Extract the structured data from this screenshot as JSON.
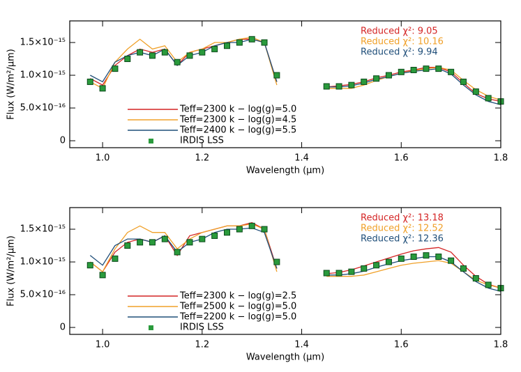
{
  "chart_data": [
    {
      "type": "line",
      "xlabel": "Wavelength (µm)",
      "ylabel": "Flux (W/m²/µm)",
      "xlim": [
        0.934,
        1.8
      ],
      "ylim": [
        -1.06e-16,
        1.83e-15
      ],
      "xticks": [
        {
          "value": 1,
          "label": "1.0"
        },
        1.2,
        1.4,
        1.6,
        1.8
      ],
      "yticks": [
        0,
        {
          "value": 5e-16,
          "label": "5.0×10⁻¹⁶"
        },
        {
          "value": 1e-15,
          "label": "1.0×10⁻¹⁵"
        },
        {
          "value": 1.5e-15,
          "label": "1.5×10⁻¹⁵"
        }
      ],
      "x": [
        0.975,
        1.0,
        1.025,
        1.05,
        1.075,
        1.1,
        1.125,
        1.15,
        1.175,
        1.2,
        1.225,
        1.25,
        1.275,
        1.3,
        1.325,
        1.35,
        1.4,
        1.45,
        1.475,
        1.5,
        1.525,
        1.55,
        1.575,
        1.6,
        1.625,
        1.65,
        1.675,
        1.7,
        1.725,
        1.75,
        1.775,
        1.8
      ],
      "series": [
        {
          "name": "Teff=2300 k − log(g)=5.0",
          "color": "#d42424",
          "values": [
            9.5e-16,
            8.5e-16,
            1.15e-15,
            1.3e-15,
            1.4e-15,
            1.35e-15,
            1.4e-15,
            1.15e-15,
            1.35e-15,
            1.4e-15,
            1.45e-15,
            1.5e-15,
            1.55e-15,
            1.55e-15,
            1.5e-15,
            9e-16,
            null,
            8.2e-16,
            8.4e-16,
            8.6e-16,
            9e-16,
            9.6e-16,
            1e-15,
            1.05e-15,
            1.08e-15,
            1.12e-15,
            1.12e-15,
            1.05e-15,
            8.8e-16,
            7.2e-16,
            6.4e-16,
            6e-16
          ]
        },
        {
          "name": "Teff=2300 k − log(g)=4.5",
          "color": "#f0a028",
          "values": [
            9e-16,
            8e-16,
            1.2e-15,
            1.4e-15,
            1.55e-15,
            1.4e-15,
            1.45e-15,
            1.2e-15,
            1.35e-15,
            1.4e-15,
            1.5e-15,
            1.5e-15,
            1.55e-15,
            1.58e-15,
            1.5e-15,
            8.5e-16,
            null,
            8e-16,
            8e-16,
            8e-16,
            8.5e-16,
            9.2e-16,
            9.8e-16,
            1.03e-15,
            1.07e-15,
            1.1e-15,
            1.12e-15,
            1.08e-15,
            9.2e-16,
            7.8e-16,
            6.8e-16,
            6.2e-16
          ]
        },
        {
          "name": "Teff=2400 k − log(g)=5.5",
          "color": "#1f4e79",
          "values": [
            1e-15,
            9e-16,
            1.2e-15,
            1.3e-15,
            1.35e-15,
            1.3e-15,
            1.4e-15,
            1.15e-15,
            1.3e-15,
            1.35e-15,
            1.45e-15,
            1.5e-15,
            1.5e-15,
            1.55e-15,
            1.5e-15,
            9e-16,
            null,
            8.2e-16,
            8.2e-16,
            8.4e-16,
            8.8e-16,
            9.4e-16,
            9.8e-16,
            1.03e-15,
            1.06e-15,
            1.08e-15,
            1.1e-15,
            1.02e-15,
            8.5e-16,
            7e-16,
            6e-16,
            5.5e-16
          ]
        },
        {
          "name": "IRDIS LSS",
          "color": "#2a9a3c",
          "marker": "square",
          "values": [
            9e-16,
            8e-16,
            1.1e-15,
            1.25e-15,
            1.35e-15,
            1.3e-15,
            1.35e-15,
            1.2e-15,
            1.3e-15,
            1.35e-15,
            1.4e-15,
            1.45e-15,
            1.5e-15,
            1.55e-15,
            1.5e-15,
            1e-15,
            null,
            8.3e-16,
            8.3e-16,
            8.5e-16,
            9e-16,
            9.5e-16,
            1e-15,
            1.05e-15,
            1.08e-15,
            1.1e-15,
            1.1e-15,
            1.05e-15,
            9e-16,
            7.5e-16,
            6.5e-16,
            6e-16
          ]
        }
      ],
      "annotations": [
        {
          "text": "Reduced χ²: 9.05",
          "color": "#d42424"
        },
        {
          "text": "Reduced χ²: 10.16",
          "color": "#f0a028"
        },
        {
          "text": "Reduced χ²: 9.94",
          "color": "#1f4e79"
        }
      ]
    },
    {
      "type": "line",
      "xlabel": "Wavelength (µm)",
      "ylabel": "Flux (W/m²/µm)",
      "xlim": [
        0.934,
        1.8
      ],
      "ylim": [
        -1.06e-16,
        1.83e-15
      ],
      "xticks": [
        {
          "value": 1,
          "label": "1.0"
        },
        1.2,
        1.4,
        1.6,
        1.8
      ],
      "yticks": [
        0,
        {
          "value": 5e-16,
          "label": "5.0×10⁻¹⁶"
        },
        {
          "value": 1e-15,
          "label": "1.0×10⁻¹⁵"
        },
        {
          "value": 1.5e-15,
          "label": "1.5×10⁻¹⁵"
        }
      ],
      "x": [
        0.975,
        1.0,
        1.025,
        1.05,
        1.075,
        1.1,
        1.125,
        1.15,
        1.175,
        1.2,
        1.225,
        1.25,
        1.275,
        1.3,
        1.325,
        1.35,
        1.4,
        1.45,
        1.475,
        1.5,
        1.525,
        1.55,
        1.575,
        1.6,
        1.625,
        1.65,
        1.675,
        1.7,
        1.725,
        1.75,
        1.775,
        1.8
      ],
      "series": [
        {
          "name": "Teff=2300 k − log(g)=2.5",
          "color": "#d42424",
          "values": [
            1e-15,
            8.5e-16,
            1.15e-15,
            1.3e-15,
            1.35e-15,
            1.3e-15,
            1.4e-15,
            1.1e-15,
            1.4e-15,
            1.45e-15,
            1.5e-15,
            1.55e-15,
            1.55e-15,
            1.6e-15,
            1.5e-15,
            9e-16,
            null,
            8.2e-16,
            8.4e-16,
            8.8e-16,
            9.4e-16,
            1e-15,
            1.06e-15,
            1.12e-15,
            1.17e-15,
            1.2e-15,
            1.22e-15,
            1.15e-15,
            9.5e-16,
            7.8e-16,
            6.6e-16,
            6e-16
          ]
        },
        {
          "name": "Teff=2500 k − log(g)=5.0",
          "color": "#f0a028",
          "values": [
            1e-15,
            8.5e-16,
            1.2e-15,
            1.45e-15,
            1.55e-15,
            1.45e-15,
            1.45e-15,
            1.2e-15,
            1.35e-15,
            1.45e-15,
            1.5e-15,
            1.55e-15,
            1.55e-15,
            1.58e-15,
            1.5e-15,
            8.5e-16,
            null,
            7.8e-16,
            7.8e-16,
            7.8e-16,
            8e-16,
            8.5e-16,
            9e-16,
            9.5e-16,
            9.8e-16,
            1e-15,
            1.02e-15,
            9.8e-16,
            8.5e-16,
            7.2e-16,
            6.5e-16,
            6e-16
          ]
        },
        {
          "name": "Teff=2200 k − log(g)=5.0",
          "color": "#1f4e79",
          "values": [
            1.1e-15,
            9.5e-16,
            1.25e-15,
            1.35e-15,
            1.35e-15,
            1.3e-15,
            1.4e-15,
            1.15e-15,
            1.3e-15,
            1.35e-15,
            1.45e-15,
            1.5e-15,
            1.5e-15,
            1.52e-15,
            1.45e-15,
            9e-16,
            null,
            8e-16,
            8e-16,
            8.2e-16,
            8.6e-16,
            9.2e-16,
            9.7e-16,
            1.02e-15,
            1.05e-15,
            1.08e-15,
            1.08e-15,
            1e-15,
            8.5e-16,
            7e-16,
            6e-16,
            5.5e-16
          ]
        },
        {
          "name": "IRDIS LSS",
          "color": "#2a9a3c",
          "marker": "square",
          "values": [
            9.5e-16,
            8e-16,
            1.05e-15,
            1.25e-15,
            1.3e-15,
            1.3e-15,
            1.35e-15,
            1.15e-15,
            1.3e-15,
            1.35e-15,
            1.4e-15,
            1.45e-15,
            1.5e-15,
            1.55e-15,
            1.5e-15,
            1e-15,
            null,
            8.3e-16,
            8.3e-16,
            8.5e-16,
            9e-16,
            9.5e-16,
            1e-15,
            1.05e-15,
            1.08e-15,
            1.1e-15,
            1.08e-15,
            1.02e-15,
            9e-16,
            7.5e-16,
            6.5e-16,
            6e-16
          ]
        }
      ],
      "annotations": [
        {
          "text": "Reduced χ²: 13.18",
          "color": "#d42424"
        },
        {
          "text": "Reduced χ²: 12.52",
          "color": "#f0a028"
        },
        {
          "text": "Reduced χ²: 12.36",
          "color": "#1f4e79"
        }
      ]
    }
  ]
}
